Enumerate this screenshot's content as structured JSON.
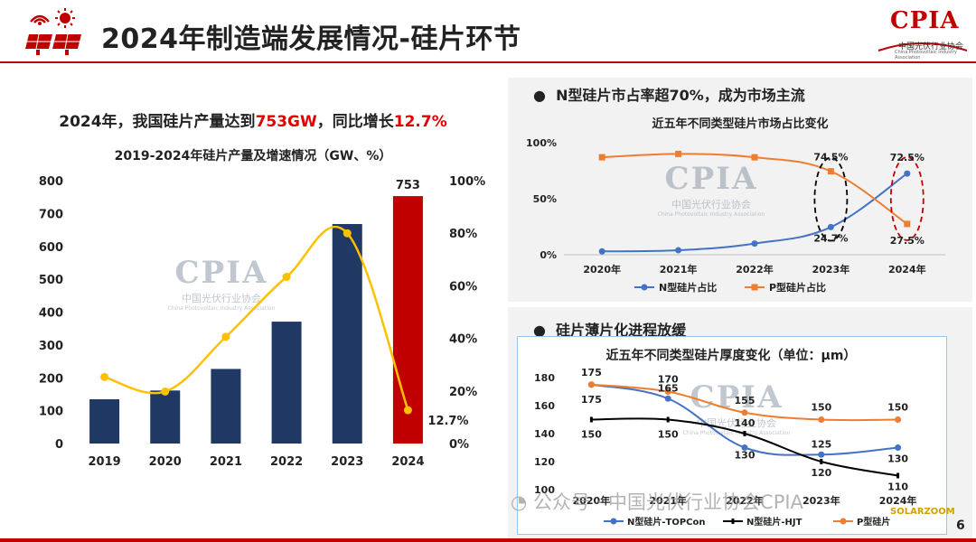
{
  "header": {
    "title": "2024年制造端发展情况-硅片环节"
  },
  "logo": {
    "name": "CPIA",
    "cn_name": "中国光伏行业协会",
    "en_name": "China Photovoltaic Industry Association"
  },
  "left": {
    "headline_prefix": "2024年，我国硅片产量达到",
    "headline_value": "753GW",
    "headline_mid": "，同比增长",
    "headline_growth": "12.7%"
  },
  "top_right": {
    "bullet": "N型硅片市占率超70%，成为市场主流"
  },
  "bottom_right": {
    "bullet": "硅片薄片化进程放缓"
  },
  "watermark": {
    "big": "CPIA",
    "cn": "中国光伏行业协会",
    "en": "China Photovoltaic Industry Association"
  },
  "source": {
    "text": "公众号 · 中国光伏行业协会CPIA",
    "site": "SOLARZOOM"
  },
  "page": {
    "number": "6"
  },
  "colors": {
    "accent_red": "#c00000",
    "bar_navy": "#1f3864",
    "bar_red": "#c00000",
    "growth_line": "#ffc000",
    "n_type": "#4472c4",
    "p_type": "#ed7d31",
    "hjt": "#000000",
    "dashed_black": "#000000",
    "dashed_red": "#c00000"
  },
  "chart_data": [
    {
      "type": "bar",
      "title": "2019-2024年硅片产量及增速情况（GW、%）",
      "categories": [
        "2019",
        "2020",
        "2021",
        "2022",
        "2023",
        "2024"
      ],
      "series": [
        {
          "values": [
            134.7,
            161.4,
            227,
            371,
            668,
            753
          ],
          "axis": "left"
        },
        {
          "type": "line",
          "values": [
            25.3,
            19.8,
            40.6,
            63.4,
            80.0,
            12.7
          ],
          "axis": "right"
        }
      ],
      "data_labels": {
        "bar_2024": "753",
        "line_2024": "12.7%"
      },
      "ylim": [
        0,
        800
      ],
      "yticks": [
        "0",
        "100",
        "200",
        "300",
        "400",
        "500",
        "600",
        "700",
        "800"
      ],
      "y2lim": [
        0,
        100
      ],
      "y2ticks": [
        "0%",
        "20%",
        "40%",
        "60%",
        "80%",
        "100%"
      ],
      "grid": false
    },
    {
      "type": "line",
      "title": "近五年不同类型硅片市场占比变化",
      "categories": [
        "2020年",
        "2021年",
        "2022年",
        "2023年",
        "2024年"
      ],
      "series": [
        {
          "name": "N型硅片占比",
          "values": [
            3.0,
            4.0,
            10.0,
            24.7,
            72.5
          ]
        },
        {
          "name": "P型硅片占比",
          "values": [
            87.0,
            90.0,
            87.0,
            74.5,
            27.5
          ]
        }
      ],
      "data_labels": [
        {
          "series": 1,
          "index": 3,
          "text": "74.5%"
        },
        {
          "series": 0,
          "index": 3,
          "text": "24.7%"
        },
        {
          "series": 0,
          "index": 4,
          "text": "72.5%"
        },
        {
          "series": 1,
          "index": 4,
          "text": "27.5%"
        }
      ],
      "ylim": [
        0,
        100
      ],
      "yticks": [
        "0%",
        "50%",
        "100%"
      ],
      "legend": "bottom",
      "grid": false
    },
    {
      "type": "line",
      "title": "近五年不同类型硅片厚度变化（单位：μm）",
      "categories": [
        "2020年",
        "2021年",
        "2022年",
        "2023年",
        "2024年"
      ],
      "series": [
        {
          "name": "N型硅片-TOPCon",
          "values": [
            175,
            165,
            130,
            125,
            130
          ]
        },
        {
          "name": "N型硅片-HJT",
          "values": [
            150,
            150,
            140,
            120,
            110
          ]
        },
        {
          "name": "P型硅片",
          "values": [
            175,
            170,
            155,
            150,
            150
          ]
        }
      ],
      "data_labels": [
        [
          "175",
          "165",
          "130",
          "125",
          "130"
        ],
        [
          "150",
          "150",
          "140",
          "120",
          "110"
        ],
        [
          "175",
          "170",
          "155",
          "150",
          "150"
        ]
      ],
      "ylim": [
        100,
        180
      ],
      "yticks": [
        "100",
        "120",
        "140",
        "160",
        "180"
      ],
      "legend": "bottom",
      "grid": false
    }
  ]
}
